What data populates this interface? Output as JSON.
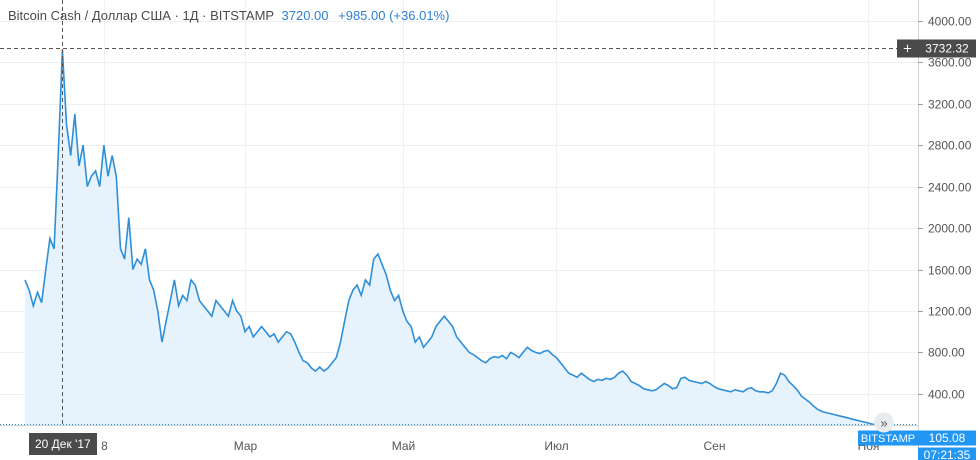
{
  "header": {
    "symbol": "Bitcoin Cash / Доллар США · 1Д · BITSTAMP",
    "last": "3720.00",
    "change": "+985.00 (+36.01%)"
  },
  "crosshair": {
    "date_label": "20 Дек '17",
    "price_label": "3732.32",
    "value": 3732.32,
    "x_index": 9
  },
  "price_scale": {
    "ticks": [
      "4000.00",
      "3600.00",
      "3200.00",
      "2800.00",
      "2400.00",
      "2000.00",
      "1600.00",
      "1200.00",
      "800.00",
      "400.00"
    ],
    "tick_values": [
      4000,
      3600,
      3200,
      2800,
      2400,
      2000,
      1600,
      1200,
      800,
      400
    ],
    "exchange_tag": "BITSTAMP",
    "last_price_tag": "105.08",
    "countdown": "07:21:35"
  },
  "time_scale": {
    "labels": [
      {
        "text": "8",
        "x_index": 19
      },
      {
        "text": "Мар",
        "x_index": 53
      },
      {
        "text": "Май",
        "x_index": 91
      },
      {
        "text": "Июл",
        "x_index": 128
      },
      {
        "text": "Сен",
        "x_index": 166
      },
      {
        "text": "Ноя",
        "x_index": 203
      }
    ]
  },
  "colors": {
    "line": "#2f8fd8",
    "area": "#e6f2fc",
    "grid": "#eef0f3",
    "axis_text": "#555555",
    "tag_bg": "#2196f3",
    "crosshair": "#555555"
  },
  "chart_data": {
    "type": "area",
    "title": "Bitcoin Cash / Доллар США · 1Д · BITSTAMP",
    "x_unit": "days (daily bars)",
    "ylim": [
      100,
      4200
    ],
    "grid": true,
    "series": [
      {
        "name": "BCH/USD",
        "values": [
          1500,
          1400,
          1250,
          1380,
          1280,
          1600,
          1900,
          1800,
          2700,
          3720,
          3000,
          2700,
          3100,
          2600,
          2800,
          2400,
          2500,
          2550,
          2400,
          2800,
          2500,
          2700,
          2500,
          1800,
          1700,
          2100,
          1600,
          1700,
          1650,
          1800,
          1500,
          1400,
          1200,
          900,
          1100,
          1300,
          1500,
          1250,
          1350,
          1300,
          1500,
          1450,
          1300,
          1250,
          1200,
          1150,
          1300,
          1250,
          1200,
          1150,
          1300,
          1200,
          1150,
          1000,
          1050,
          950,
          1000,
          1050,
          1000,
          950,
          980,
          900,
          950,
          1000,
          980,
          900,
          800,
          720,
          700,
          650,
          620,
          660,
          620,
          650,
          700,
          750,
          900,
          1100,
          1300,
          1400,
          1450,
          1350,
          1500,
          1450,
          1700,
          1750,
          1650,
          1550,
          1400,
          1300,
          1350,
          1200,
          1100,
          1050,
          900,
          950,
          850,
          900,
          950,
          1050,
          1100,
          1150,
          1100,
          1050,
          950,
          900,
          850,
          800,
          780,
          750,
          720,
          700,
          740,
          760,
          750,
          770,
          740,
          800,
          780,
          750,
          800,
          850,
          820,
          800,
          790,
          810,
          820,
          780,
          750,
          700,
          650,
          600,
          580,
          560,
          600,
          570,
          540,
          520,
          540,
          530,
          550,
          540,
          560,
          600,
          620,
          580,
          520,
          500,
          480,
          450,
          440,
          430,
          440,
          470,
          500,
          480,
          450,
          460,
          550,
          560,
          530,
          520,
          510,
          500,
          520,
          500,
          470,
          450,
          440,
          430,
          420,
          440,
          430,
          420,
          450,
          460,
          430,
          420,
          420,
          410,
          430,
          500,
          600,
          580,
          520,
          480,
          440,
          380,
          350,
          320,
          280,
          250,
          230,
          220,
          210,
          200,
          190,
          180,
          170,
          160,
          150,
          140,
          130,
          120,
          110,
          105.08
        ]
      }
    ]
  }
}
